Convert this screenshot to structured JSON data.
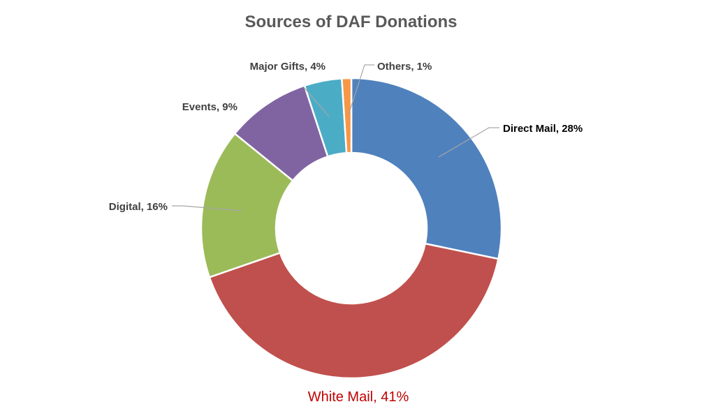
{
  "chart_data": {
    "type": "donut",
    "title": "Sources of DAF Donations",
    "legend": "none",
    "slices": [
      {
        "name": "Direct Mail",
        "value": 28,
        "label": "Direct Mail, 28%",
        "color": "#4f81bd"
      },
      {
        "name": "White Mail",
        "value": 41,
        "label": "White Mail, 41%",
        "color": "#c0504d"
      },
      {
        "name": "Digital",
        "value": 16,
        "label": "Digital, 16%",
        "color": "#9bbb59"
      },
      {
        "name": "Events",
        "value": 9,
        "label": "Events, 9%",
        "color": "#8064a2"
      },
      {
        "name": "Major Gifts",
        "value": 4,
        "label": "Major Gifts, 4%",
        "color": "#4bacc6"
      },
      {
        "name": "Others",
        "value": 1,
        "label": "Others, 1%",
        "color": "#f79646"
      }
    ]
  }
}
